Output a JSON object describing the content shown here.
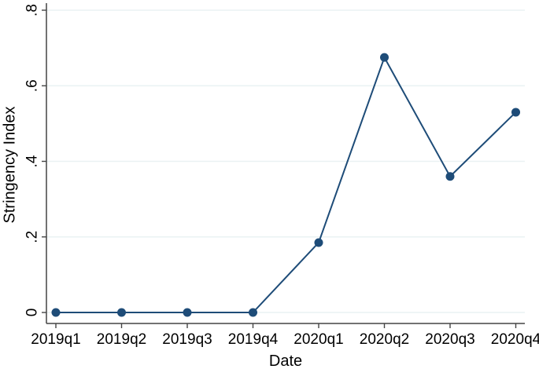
{
  "chart_data": {
    "type": "line",
    "title": "",
    "xlabel": "Date",
    "ylabel": "Stringency Index",
    "categories": [
      "2019q1",
      "2019q2",
      "2019q3",
      "2019q4",
      "2020q1",
      "2020q2",
      "2020q3",
      "2020q4"
    ],
    "series": [
      {
        "name": "Stringency Index",
        "values": [
          0,
          0,
          0,
          0,
          0.185,
          0.675,
          0.36,
          0.53
        ]
      }
    ],
    "yticks": [
      0,
      0.2,
      0.4,
      0.6,
      0.8
    ],
    "ytick_labels": [
      "0",
      ".2",
      ".4",
      ".6",
      ".8"
    ],
    "ylim": [
      0,
      0.8
    ],
    "grid": true,
    "legend": "none",
    "colors": {
      "line": "#1e4c78",
      "marker": "#1e4c78",
      "grid": "#eaf2f3",
      "axis": "#444444",
      "text": "#000000"
    }
  }
}
